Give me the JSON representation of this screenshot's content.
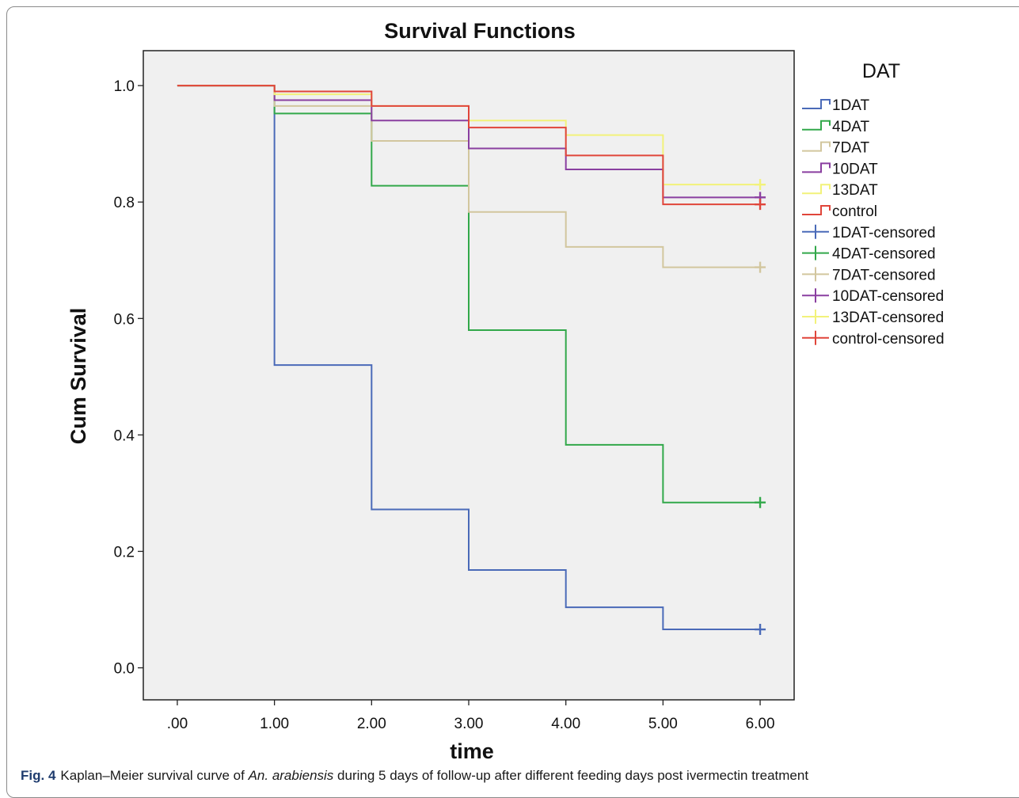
{
  "chart_data": {
    "type": "line",
    "step": true,
    "title": "Survival Functions",
    "xlabel": "time",
    "ylabel": "Cum Survival",
    "xlim": [
      -0.35,
      6.35
    ],
    "ylim": [
      -0.055,
      1.06
    ],
    "xticks": [
      0,
      1,
      2,
      3,
      4,
      5,
      6
    ],
    "xtick_labels": [
      ".00",
      "1.00",
      "2.00",
      "3.00",
      "4.00",
      "5.00",
      "6.00"
    ],
    "yticks": [
      0,
      0.2,
      0.4,
      0.6,
      0.8,
      1.0
    ],
    "ytick_labels": [
      "0.0",
      "0.2",
      "0.4",
      "0.6",
      "0.8",
      "1.0"
    ],
    "grid": false,
    "plot_background": "#f0f0f0",
    "legend_title": "DAT",
    "legend_position": "right",
    "x": [
      0,
      1,
      2,
      3,
      4,
      5,
      6
    ],
    "series": [
      {
        "name": "1DAT",
        "color": "#4a6ab8",
        "values": [
          1.0,
          0.52,
          0.272,
          0.168,
          0.104,
          0.066,
          0.066
        ]
      },
      {
        "name": "4DAT",
        "color": "#32a84a",
        "values": [
          1.0,
          0.952,
          0.828,
          0.58,
          0.383,
          0.284,
          0.284
        ]
      },
      {
        "name": "7DAT",
        "color": "#d2c69e",
        "values": [
          1.0,
          0.965,
          0.905,
          0.783,
          0.723,
          0.688,
          0.688
        ]
      },
      {
        "name": "10DAT",
        "color": "#8a3fa0",
        "values": [
          1.0,
          0.975,
          0.94,
          0.892,
          0.856,
          0.808,
          0.808
        ]
      },
      {
        "name": "13DAT",
        "color": "#f2f27a",
        "values": [
          1.0,
          0.985,
          0.965,
          0.94,
          0.915,
          0.83,
          0.83
        ]
      },
      {
        "name": "control",
        "color": "#e0453a",
        "values": [
          1.0,
          0.99,
          0.965,
          0.928,
          0.88,
          0.796,
          0.796
        ]
      }
    ],
    "censored": [
      {
        "name": "1DAT-censored",
        "color": "#4a6ab8",
        "x": 6,
        "y": 0.066
      },
      {
        "name": "4DAT-censored",
        "color": "#32a84a",
        "x": 6,
        "y": 0.284
      },
      {
        "name": "7DAT-censored",
        "color": "#d2c69e",
        "x": 6,
        "y": 0.688
      },
      {
        "name": "10DAT-censored",
        "color": "#8a3fa0",
        "x": 6,
        "y": 0.808
      },
      {
        "name": "13DAT-censored",
        "color": "#f2f27a",
        "x": 6,
        "y": 0.83
      },
      {
        "name": "control-censored",
        "color": "#e0453a",
        "x": 6,
        "y": 0.796
      }
    ]
  },
  "caption": {
    "figure_label": "Fig. 4",
    "text_before": "Kaplan–Meier survival curve of ",
    "species": "An. arabiensis",
    "text_after": " during 5 days of follow-up after different feeding days post ivermectin treatment"
  }
}
